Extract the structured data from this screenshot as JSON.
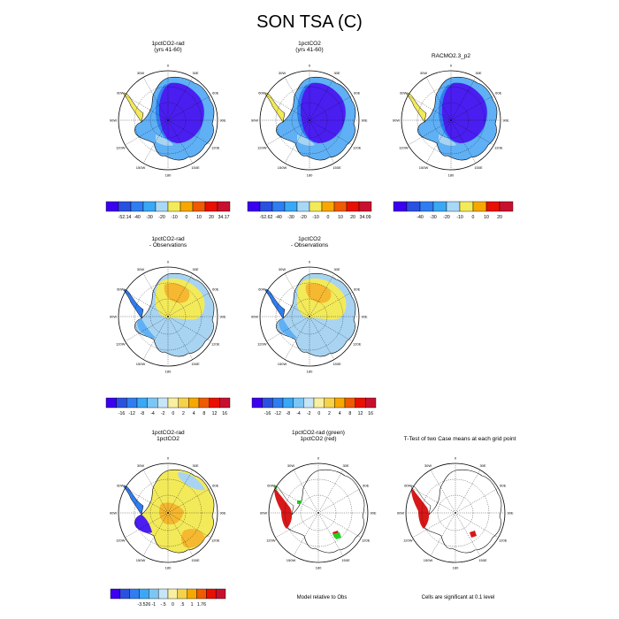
{
  "page": {
    "title": "SON TSA (C)"
  },
  "panels": [
    {
      "id": "p1",
      "title1": "1pctCO2-rad",
      "title2": "(yrs 41-60)",
      "style": "full",
      "colorbar": "cb1"
    },
    {
      "id": "p2",
      "title1": "1pctCO2",
      "title2": "(yrs 41-60)",
      "style": "full",
      "colorbar": "cb2"
    },
    {
      "id": "p3",
      "title1": "RACMO2.3_p2",
      "title2": "",
      "style": "full",
      "colorbar": "cb3"
    },
    {
      "id": "p4",
      "title1": "1pctCO2-rad",
      "title2": "- Observations",
      "style": "diff",
      "colorbar": "cb4"
    },
    {
      "id": "p5",
      "title1": "1pctCO2",
      "title2": "- Observations",
      "style": "diff",
      "colorbar": "cb5"
    },
    {
      "id": "p7",
      "title1": "1pctCO2-rad",
      "title2": "1pctCO2",
      "style": "diff2",
      "colorbar": "cb7"
    },
    {
      "id": "p8",
      "title1": "1pctCO2-rad (green)",
      "title2": "1pctCO2 (red)",
      "style": "sig",
      "colorbar": ""
    },
    {
      "id": "p9",
      "title1": "T-Test of two Case means at each grid point",
      "title2": "",
      "style": "ttest",
      "colorbar": ""
    }
  ],
  "map_labels": {
    "lon_top": "0",
    "lon_bottom": "180",
    "lon_30w": "30W",
    "lon_30e": "30E",
    "lon_60w": "60W",
    "lon_60e": "60E",
    "lon_90w": "90W",
    "lon_90e": "90E",
    "lon_120w": "120W",
    "lon_120e": "120E",
    "lon_150w": "150W",
    "lon_150e": "150E"
  },
  "colorbars": {
    "cb1": {
      "labels": [
        "-52.14",
        "-40",
        "-30",
        "-20",
        "-10",
        "0",
        "10",
        "20",
        "34.17"
      ],
      "colors": [
        "#3c00f0",
        "#2a50e0",
        "#2f7df0",
        "#3aa8f5",
        "#a8d8f5",
        "#f3ea5a",
        "#f7a800",
        "#f05a00",
        "#e81000",
        "#c8102e"
      ]
    },
    "cb2": {
      "labels": [
        "-52.62",
        "-40",
        "-30",
        "-20",
        "-10",
        "0",
        "10",
        "20",
        "34.09"
      ],
      "colors": [
        "#3c00f0",
        "#2a50e0",
        "#2f7df0",
        "#3aa8f5",
        "#a8d8f5",
        "#f3ea5a",
        "#f7a800",
        "#f05a00",
        "#e81000",
        "#c8102e"
      ]
    },
    "cb3": {
      "labels": [
        "-40",
        "-30",
        "-20",
        "-10",
        "0",
        "10",
        "20"
      ],
      "colors": [
        "#3c00f0",
        "#2a50e0",
        "#2f7df0",
        "#3aa8f5",
        "#a8d8f5",
        "#f3ea5a",
        "#f7a800",
        "#e81000",
        "#c8102e"
      ]
    },
    "cb4": {
      "labels": [
        "-16",
        "-12",
        "-8",
        "-4",
        "-2",
        "0",
        "2",
        "4",
        "8",
        "12",
        "16"
      ],
      "colors": [
        "#3c00f0",
        "#2a50e0",
        "#2f7df0",
        "#3aa8f5",
        "#7cc6f5",
        "#c6e6f8",
        "#f8f0a0",
        "#f5d24a",
        "#f7a800",
        "#f05a00",
        "#e81000",
        "#c8102e"
      ]
    },
    "cb5": {
      "labels": [
        "-16",
        "-12",
        "-8",
        "-4",
        "-2",
        "0",
        "2",
        "4",
        "8",
        "12",
        "16"
      ],
      "colors": [
        "#3c00f0",
        "#2a50e0",
        "#2f7df0",
        "#3aa8f5",
        "#7cc6f5",
        "#c6e6f8",
        "#f8f0a0",
        "#f5d24a",
        "#f7a800",
        "#f05a00",
        "#e81000",
        "#c8102e"
      ]
    },
    "cb7": {
      "labels": [
        "-3.526",
        "-1",
        "-.5",
        "0",
        ".5",
        "1",
        "1.76"
      ],
      "colors": [
        "#3c00f0",
        "#2a50e0",
        "#2f7df0",
        "#3aa8f5",
        "#7cc6f5",
        "#c6e6f8",
        "#f8f0a0",
        "#f5d24a",
        "#f7a800",
        "#f05a00",
        "#e81000",
        "#c8102e"
      ]
    }
  },
  "notes": {
    "model_relative": "Model relative to Obs",
    "cells_significant": "Cells are significant at 0.1 level"
  },
  "colors": {
    "deep_blue": "#4a1ef0",
    "mid_blue": "#2f7df0",
    "light_blue": "#5fb0f5",
    "pale_blue": "#a8d4f2",
    "yellow": "#f3ea5a",
    "orange": "#f5b830",
    "red": "#d81818",
    "green": "#22d022"
  }
}
